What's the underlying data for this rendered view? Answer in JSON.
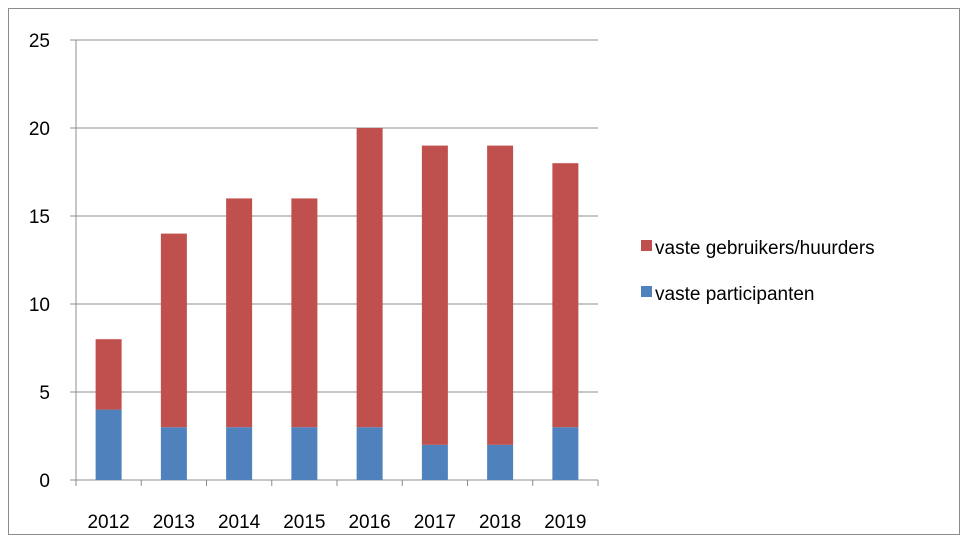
{
  "chart_data": {
    "type": "bar",
    "stacked": true,
    "categories": [
      "2012",
      "2013",
      "2014",
      "2015",
      "2016",
      "2017",
      "2018",
      "2019"
    ],
    "series": [
      {
        "name": "vaste participanten",
        "values": [
          4,
          3,
          3,
          3,
          3,
          2,
          2,
          3
        ],
        "color": "#4f81bd"
      },
      {
        "name": "vaste gebruikers/huurders",
        "values": [
          4,
          11,
          13,
          13,
          17,
          17,
          17,
          15
        ],
        "color": "#c0504d"
      }
    ],
    "title": "",
    "xlabel": "",
    "ylabel": "",
    "ylim": [
      0,
      25
    ],
    "yticks": [
      0,
      5,
      10,
      15,
      20,
      25
    ],
    "grid": true,
    "legend_position": "right",
    "legend_order": [
      "vaste gebruikers/huurders",
      "vaste participanten"
    ]
  }
}
